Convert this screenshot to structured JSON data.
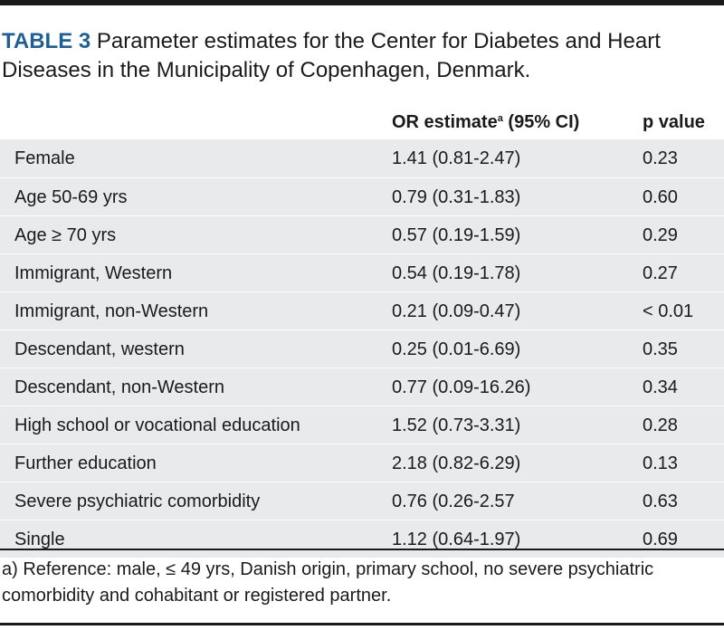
{
  "caption": {
    "label": "TABLE 3",
    "text": "Parameter estimates for the Center for Diabetes and Heart Diseases in the Municipality of Copenhagen, Denmark."
  },
  "header": {
    "or_estimate": "OR estimate",
    "or_superscript": "a",
    "or_ci": "(95% CI)",
    "p_value": "p value"
  },
  "rows": [
    {
      "variable": "Female",
      "or": "1.41 (0.81-2.47)",
      "p": "0.23"
    },
    {
      "variable": "Age 50-69 yrs",
      "or": "0.79 (0.31-1.83)",
      "p": "0.60"
    },
    {
      "variable": "Age ≥ 70 yrs",
      "or": "0.57 (0.19-1.59)",
      "p": "0.29"
    },
    {
      "variable": "Immigrant, Western",
      "or": "0.54 (0.19-1.78)",
      "p": "0.27"
    },
    {
      "variable": "Immigrant, non-Western",
      "or": "0.21 (0.09-0.47)",
      "p": "< 0.01"
    },
    {
      "variable": "Descendant, western",
      "or": "0.25 (0.01-6.69)",
      "p": "0.35"
    },
    {
      "variable": "Descendant, non-Western",
      "or": "0.77 (0.09-16.26)",
      "p": "0.34"
    },
    {
      "variable": "High school or vocational education",
      "or": "1.52 (0.73-3.31)",
      "p": "0.28"
    },
    {
      "variable": "Further education",
      "or": "2.18 (0.82-6.29)",
      "p": "0.13"
    },
    {
      "variable": "Severe psychiatric comorbidity",
      "or": "0.76 (0.26-2.57",
      "p": "0.63"
    },
    {
      "variable": "Single",
      "or": "1.12 (0.64-1.97)",
      "p": "0.69"
    }
  ],
  "footnote": "a) Reference: male, ≤ 49 yrs, Danish origin, primary school, no severe psychiatric comorbidity and cohabitant or registered partner.",
  "colors": {
    "label_blue": "#1f5f93",
    "row_shade": "#e8eaeb",
    "rule": "#1a1a1a"
  }
}
